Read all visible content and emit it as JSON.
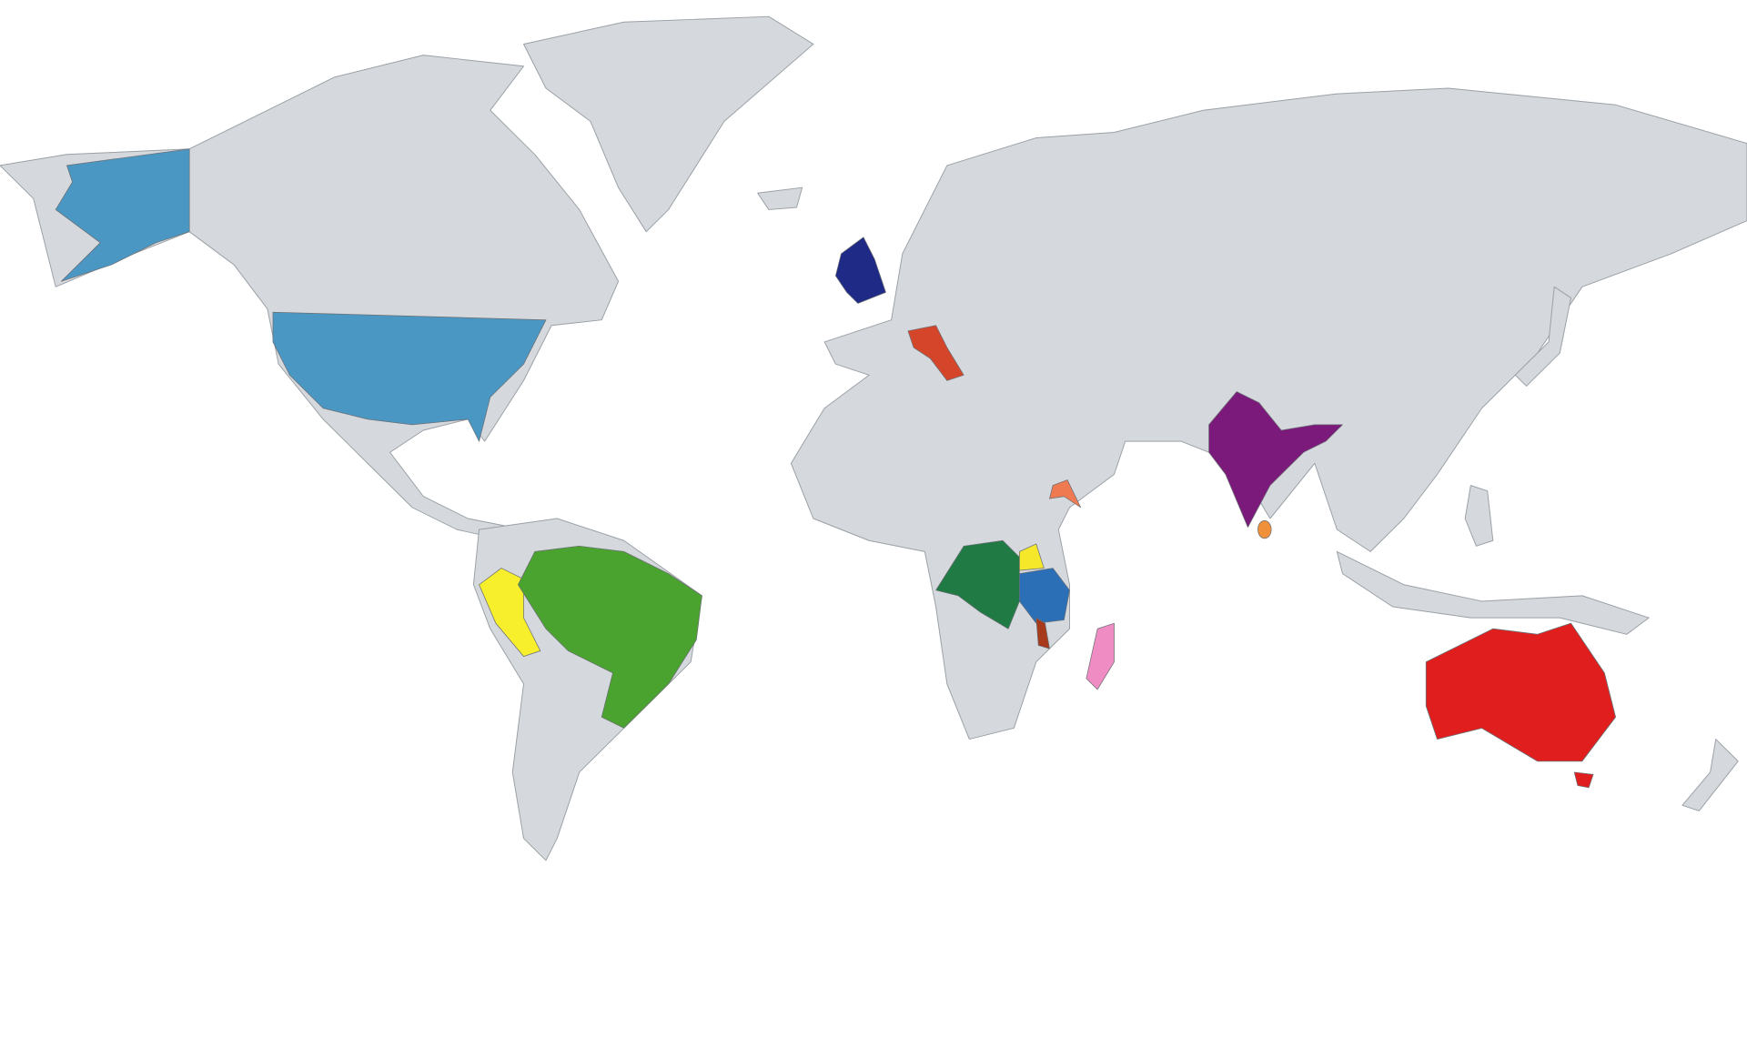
{
  "map_data": {
    "type": "choropleth-world-map",
    "projection": "equirectangular",
    "ocean_color": "#ffffff",
    "land_color": "#d5d9dd",
    "border_color": "#9aa0a6",
    "highlighted": {
      "usa": "#4a97c4",
      "united-kingdom": "#1f2a86",
      "italy": "#d4452a",
      "india": "#7b1a7b",
      "sri-lanka": "#f0903a",
      "eritrea": "#ef7a52",
      "dr-congo": "#1f7a44",
      "uganda": "#f5e82a",
      "tanzania": "#2b6fb6",
      "malawi": "#a83a1c",
      "madagascar": "#f08cc4",
      "peru": "#f7ee2c",
      "brazil": "#4aa22f",
      "australia": "#e11e1e"
    }
  }
}
